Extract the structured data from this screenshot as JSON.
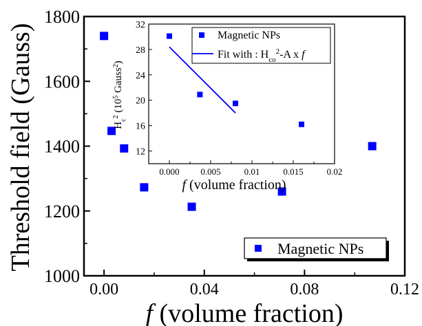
{
  "chart_data": [
    {
      "type": "scatter",
      "title": "",
      "xlabel_italic": "f",
      "xlabel_rest": " (volume fraction)",
      "ylabel": "Threshold field (Gauss)",
      "xlim": [
        -0.008,
        0.12
      ],
      "ylim": [
        1000,
        1800
      ],
      "xticks": [
        0.0,
        0.04,
        0.08,
        0.12
      ],
      "xtick_labels": [
        "0.00",
        "0.04",
        "0.08",
        "0.12"
      ],
      "yticks": [
        1000,
        1200,
        1400,
        1600,
        1800
      ],
      "ytick_labels": [
        "1000",
        "1200",
        "1400",
        "1600",
        "1800"
      ],
      "legend_placement": "bottom-right",
      "series": [
        {
          "name": "Magnetic NPs",
          "color": "#0000ff",
          "marker": "square",
          "x": [
            0.0,
            0.003,
            0.008,
            0.016,
            0.035,
            0.071,
            0.107
          ],
          "y": [
            1740,
            1447,
            1393,
            1273,
            1213,
            1260,
            1400
          ]
        }
      ]
    },
    {
      "type": "scatter",
      "title": "",
      "xlabel_italic": "f",
      "xlabel_rest": " (volume fraction)",
      "ylabel": "H_c^2 (10^5 Gauss^2)",
      "xlim": [
        -0.0025,
        0.02
      ],
      "ylim": [
        10,
        32
      ],
      "xticks": [
        0.0,
        0.005,
        0.01,
        0.015,
        0.02
      ],
      "xtick_labels": [
        "0.000",
        "0.005",
        "0.01",
        "0.015",
        "0.02"
      ],
      "yticks": [
        12,
        16,
        20,
        24,
        28,
        32
      ],
      "ytick_labels": [
        "12",
        "16",
        "20",
        "24",
        "28",
        "32"
      ],
      "legend_placement": "top-right",
      "series": [
        {
          "name": "Magnetic NPs",
          "color": "#0000ff",
          "marker": "square",
          "x": [
            0.0,
            0.0037,
            0.008,
            0.016
          ],
          "y": [
            30.1,
            20.9,
            19.5,
            16.2
          ]
        }
      ],
      "fit_line": {
        "label_prefix": "Fit with : H",
        "label_sub": "co",
        "label_sup": "2",
        "label_suffix": "-A x ",
        "label_italic": "f",
        "color": "#0000ff",
        "x": [
          0.0,
          0.008
        ],
        "y": [
          28.4,
          18.0
        ]
      }
    }
  ]
}
